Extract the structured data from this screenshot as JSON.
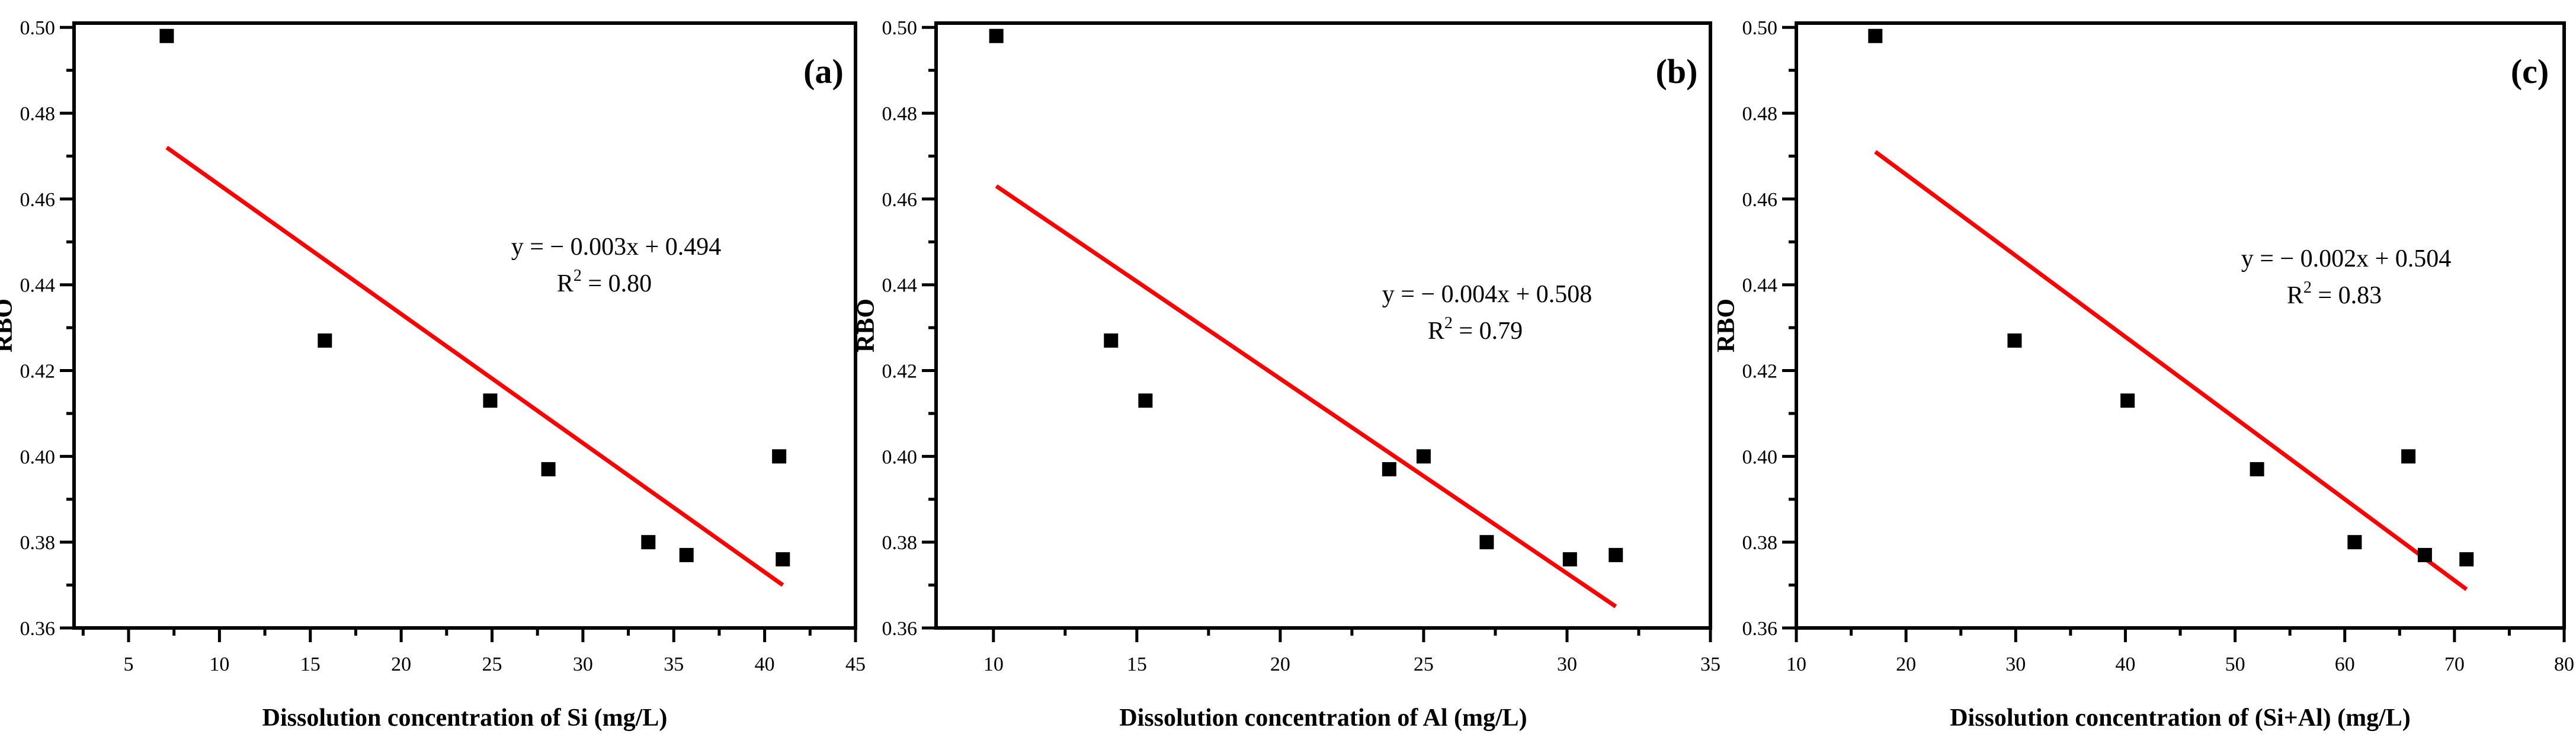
{
  "chart_data": [
    {
      "type": "scatter",
      "panel_label": "(a)",
      "xlabel": "Dissolution concentration of Si (mg/L)",
      "ylabel": "RBO",
      "xlim": [
        2,
        45
      ],
      "ylim": [
        0.36,
        0.501
      ],
      "xticks": [
        5,
        10,
        15,
        20,
        25,
        30,
        35,
        40,
        45
      ],
      "yticks": [
        0.36,
        0.38,
        0.4,
        0.42,
        0.44,
        0.46,
        0.48,
        0.5
      ],
      "points": [
        [
          7.1,
          0.498
        ],
        [
          15.8,
          0.427
        ],
        [
          24.9,
          0.413
        ],
        [
          28.1,
          0.397
        ],
        [
          33.6,
          0.38
        ],
        [
          35.7,
          0.377
        ],
        [
          40.8,
          0.4
        ],
        [
          41.0,
          0.376
        ]
      ],
      "fit": {
        "x": [
          7.1,
          41.0
        ],
        "y": [
          0.472,
          0.37
        ],
        "color": "#ff0000"
      },
      "equation": "y = − 0.003x + 0.494",
      "r2_label": "R",
      "r2_value": " = 0.80"
    },
    {
      "type": "scatter",
      "panel_label": "(b)",
      "xlabel": "Dissolution concentration of Al (mg/L)",
      "ylabel": "RBO",
      "xlim": [
        8,
        35
      ],
      "ylim": [
        0.36,
        0.501
      ],
      "xticks": [
        10,
        15,
        20,
        25,
        30,
        35
      ],
      "yticks": [
        0.36,
        0.38,
        0.4,
        0.42,
        0.44,
        0.46,
        0.48,
        0.5
      ],
      "points": [
        [
          10.1,
          0.498
        ],
        [
          14.1,
          0.427
        ],
        [
          15.3,
          0.413
        ],
        [
          23.8,
          0.397
        ],
        [
          25.0,
          0.4
        ],
        [
          27.2,
          0.38
        ],
        [
          30.1,
          0.376
        ],
        [
          31.7,
          0.377
        ]
      ],
      "fit": {
        "x": [
          10.1,
          31.7
        ],
        "y": [
          0.463,
          0.365
        ],
        "color": "#ff0000"
      },
      "equation": "y = − 0.004x + 0.508",
      "r2_label": "R",
      "r2_value": " = 0.79"
    },
    {
      "type": "scatter",
      "panel_label": "(c)",
      "xlabel": "Dissolution concentration of (Si+Al) (mg/L)",
      "ylabel": "RBO",
      "xlim": [
        10,
        80
      ],
      "ylim": [
        0.36,
        0.501
      ],
      "xticks": [
        10,
        20,
        30,
        40,
        50,
        60,
        70,
        80
      ],
      "yticks": [
        0.36,
        0.38,
        0.4,
        0.42,
        0.44,
        0.46,
        0.48,
        0.5
      ],
      "points": [
        [
          17.2,
          0.498
        ],
        [
          29.9,
          0.427
        ],
        [
          40.2,
          0.413
        ],
        [
          52.0,
          0.397
        ],
        [
          60.9,
          0.38
        ],
        [
          65.8,
          0.4
        ],
        [
          67.3,
          0.377
        ],
        [
          71.1,
          0.376
        ]
      ],
      "fit": {
        "x": [
          17.2,
          71.1
        ],
        "y": [
          0.471,
          0.369
        ],
        "color": "#ff0000"
      },
      "equation": "y = − 0.002x + 0.504",
      "r2_label": "R",
      "r2_value": " = 0.83"
    }
  ]
}
